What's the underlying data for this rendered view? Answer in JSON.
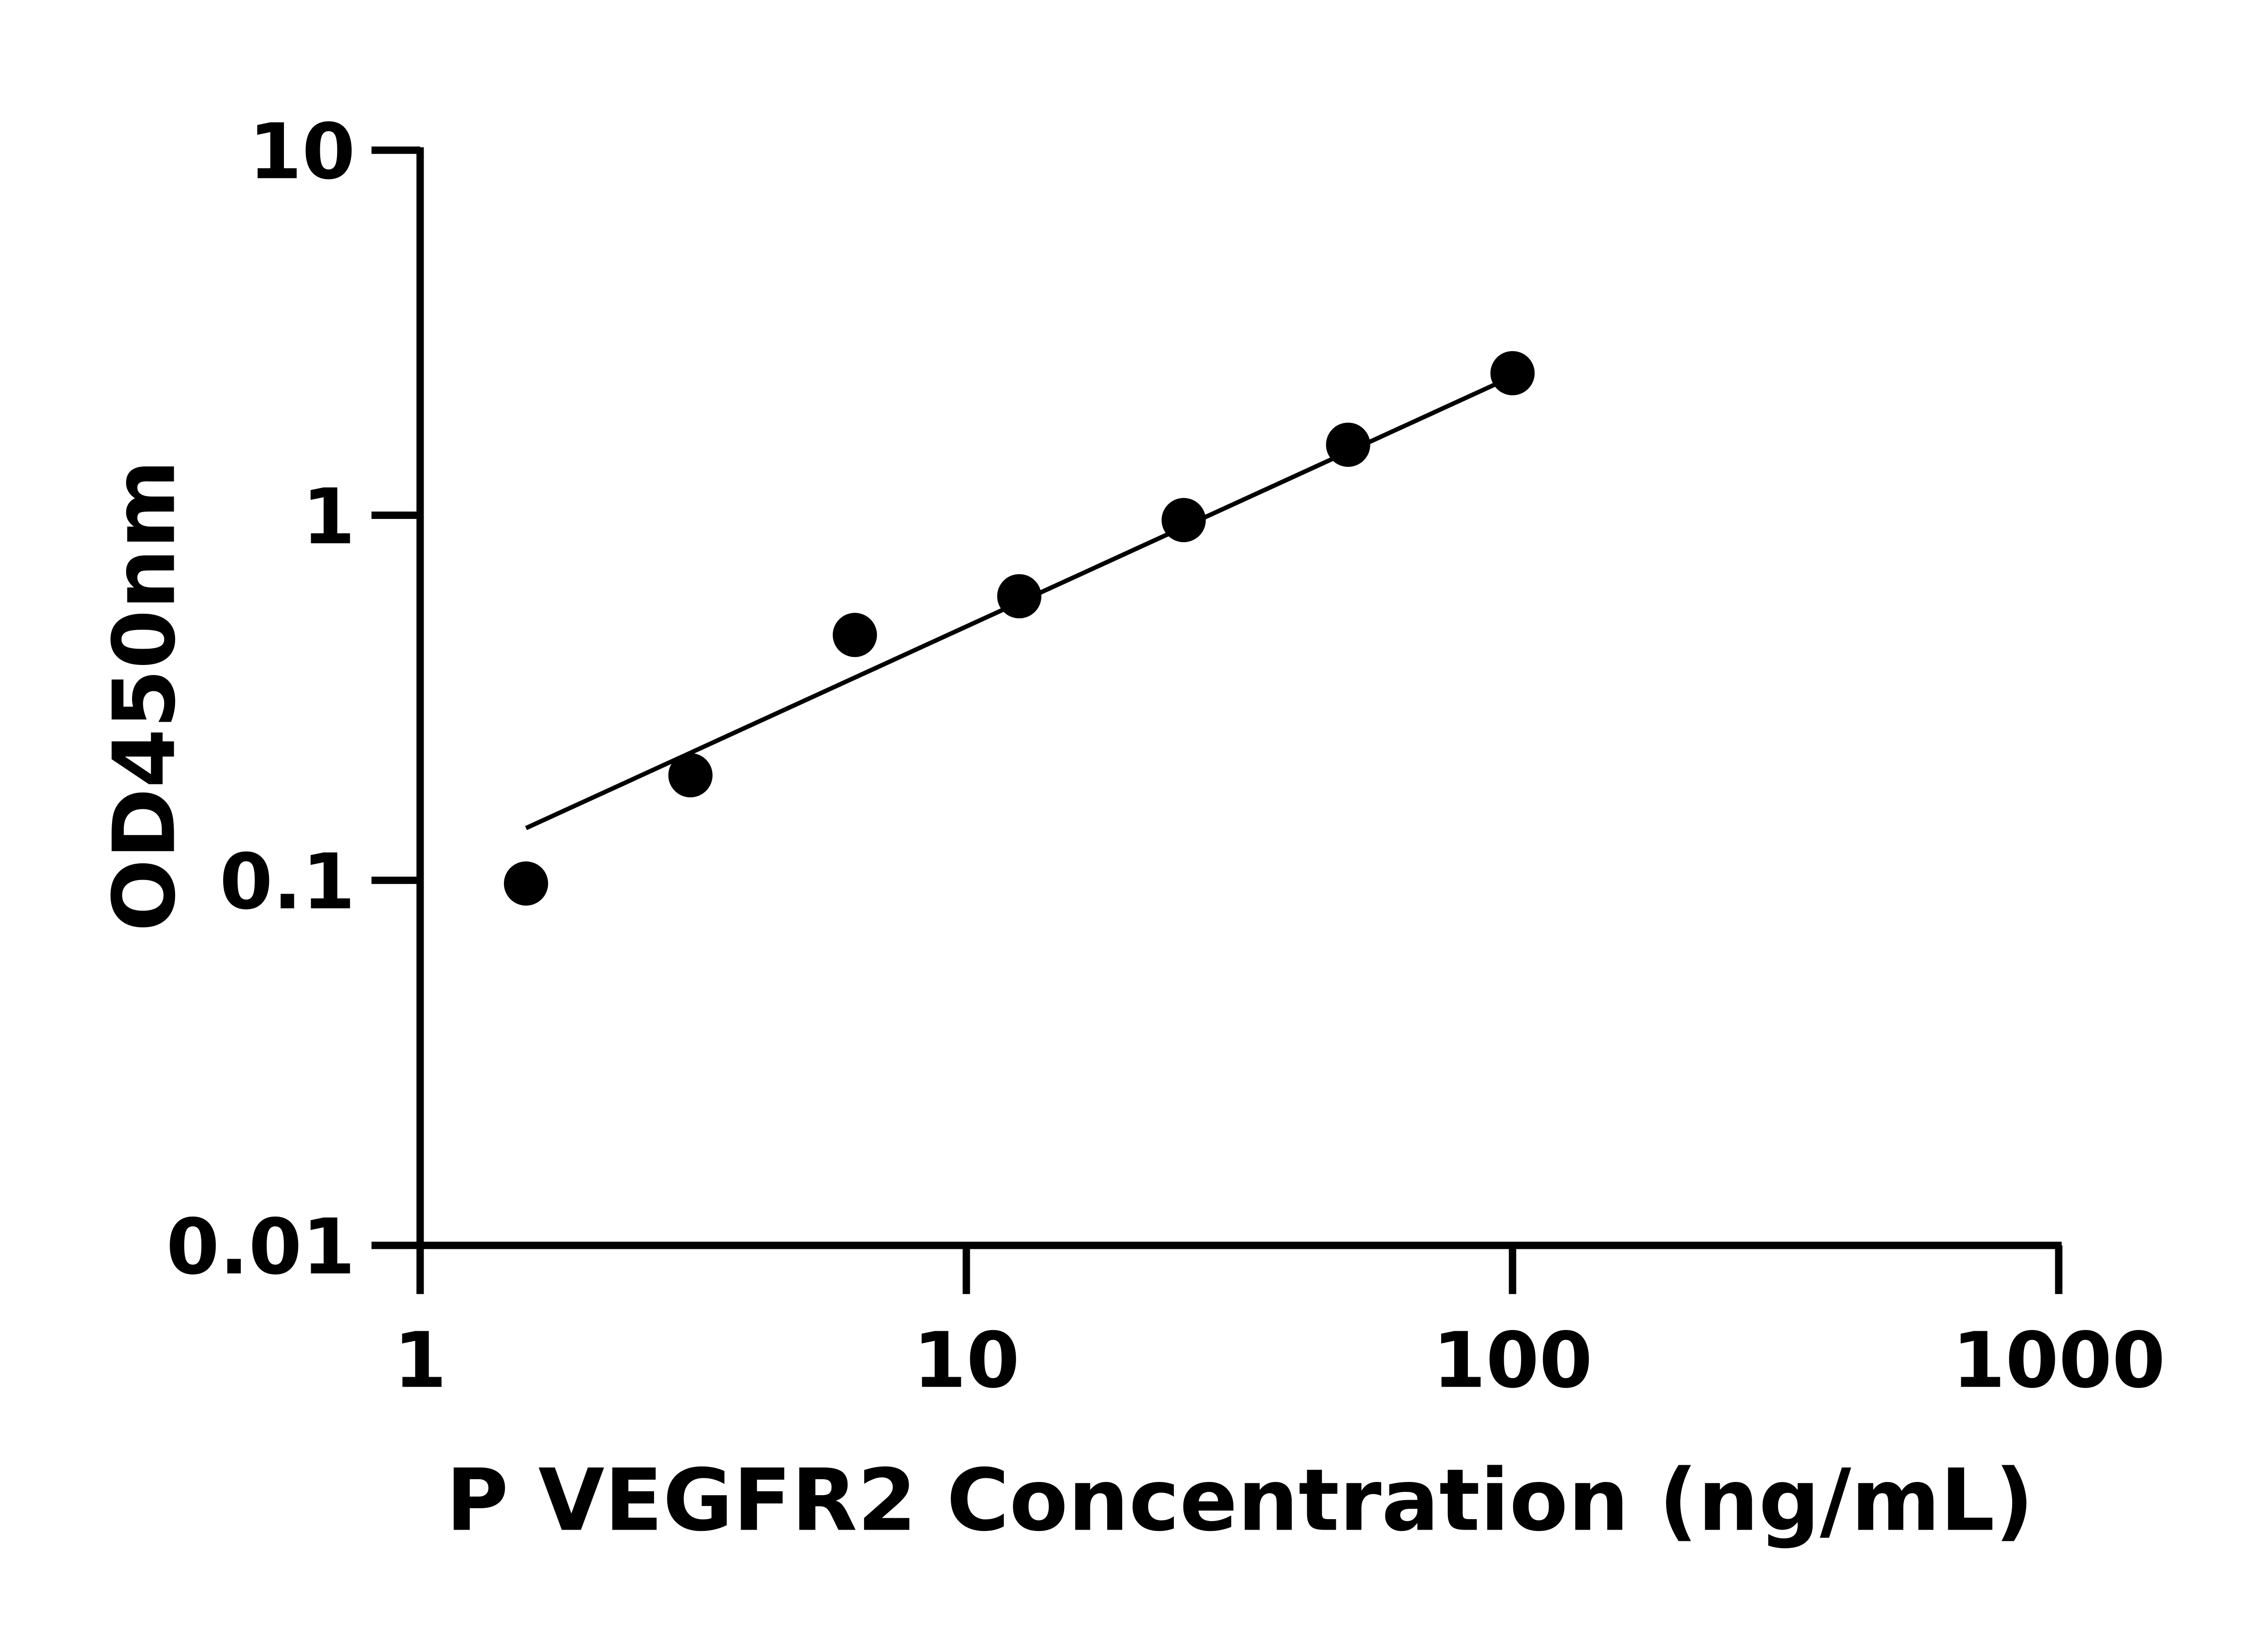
{
  "chart_data": {
    "type": "scatter",
    "title": "",
    "xlabel": "P VEGFR2 Concentration (ng/mL)",
    "ylabel": "OD450nm",
    "xscale": "log",
    "yscale": "log",
    "xlim": [
      1,
      1000
    ],
    "ylim": [
      0.01,
      10
    ],
    "xticks": [
      1,
      10,
      100,
      1000
    ],
    "xtick_labels": [
      "1",
      "10",
      "100",
      "1000"
    ],
    "yticks": [
      0.01,
      0.1,
      1,
      10
    ],
    "ytick_labels": [
      "0.01",
      "0.1",
      "1",
      "10"
    ],
    "grid": false,
    "points": {
      "x": [
        1.5625,
        3.125,
        6.25,
        12.5,
        25,
        50,
        100
      ],
      "y": [
        0.098,
        0.194,
        0.47,
        0.6,
        0.97,
        1.56,
        2.45
      ]
    },
    "fit_line": {
      "x": [
        1.5625,
        100
      ],
      "y": [
        0.139,
        2.4
      ]
    },
    "colors": {
      "marker": "#000000",
      "line": "#000000",
      "axis": "#000000"
    }
  }
}
